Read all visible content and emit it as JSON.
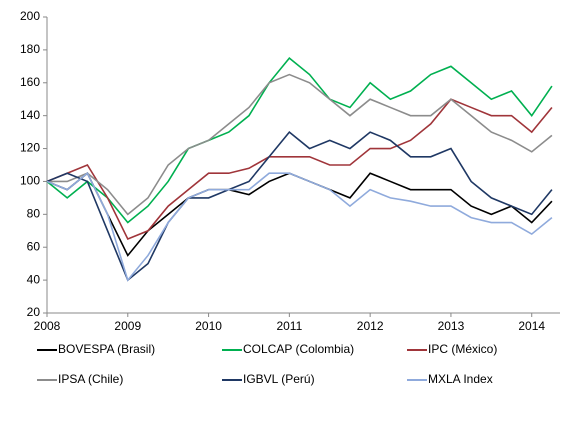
{
  "chart_data": {
    "type": "line",
    "x": [
      2008,
      2008.25,
      2008.5,
      2008.75,
      2009,
      2009.25,
      2009.5,
      2009.75,
      2010,
      2010.25,
      2010.5,
      2010.75,
      2011,
      2011.25,
      2011.5,
      2011.75,
      2012,
      2012.25,
      2012.5,
      2012.75,
      2013,
      2013.25,
      2013.5,
      2013.75,
      2014,
      2014.25
    ],
    "series": [
      {
        "name": "BOVESPA (Brasil)",
        "color": "#000000",
        "values": [
          100,
          95,
          105,
          80,
          55,
          70,
          80,
          90,
          95,
          95,
          92,
          100,
          105,
          100,
          95,
          90,
          105,
          100,
          95,
          95,
          95,
          85,
          80,
          85,
          75,
          88
        ]
      },
      {
        "name": "COLCAP (Colombia)",
        "color": "#00b050",
        "values": [
          100,
          90,
          100,
          90,
          75,
          85,
          100,
          120,
          125,
          130,
          140,
          160,
          175,
          165,
          150,
          145,
          160,
          150,
          155,
          165,
          170,
          160,
          150,
          155,
          140,
          158
        ]
      },
      {
        "name": "IPC (México)",
        "color": "#a0353a",
        "values": [
          100,
          105,
          110,
          90,
          65,
          70,
          85,
          95,
          105,
          105,
          108,
          115,
          115,
          115,
          110,
          110,
          120,
          120,
          125,
          135,
          150,
          145,
          140,
          140,
          130,
          145
        ]
      },
      {
        "name": "IPSA (Chile)",
        "color": "#8c8c8c",
        "values": [
          100,
          100,
          105,
          95,
          80,
          90,
          110,
          120,
          125,
          135,
          145,
          160,
          165,
          160,
          150,
          140,
          150,
          145,
          140,
          140,
          150,
          140,
          130,
          125,
          118,
          128
        ]
      },
      {
        "name": "IGBVL (Perú)",
        "color": "#1f3864",
        "values": [
          100,
          105,
          100,
          70,
          40,
          50,
          75,
          90,
          90,
          95,
          100,
          115,
          130,
          120,
          125,
          120,
          130,
          125,
          115,
          115,
          120,
          100,
          90,
          85,
          80,
          95
        ]
      },
      {
        "name": "MXLA Index",
        "color": "#8faadc",
        "values": [
          100,
          95,
          105,
          80,
          40,
          55,
          75,
          90,
          95,
          95,
          95,
          105,
          105,
          100,
          95,
          85,
          95,
          90,
          88,
          85,
          85,
          78,
          75,
          75,
          68,
          78
        ]
      }
    ],
    "xlim": [
      2008,
      2014.35
    ],
    "xticks": [
      2008,
      2009,
      2010,
      2011,
      2012,
      2013,
      2014
    ],
    "ylim": [
      20,
      200
    ],
    "yticks": [
      20,
      40,
      60,
      80,
      100,
      120,
      140,
      160,
      180,
      200
    ],
    "grid": false
  }
}
